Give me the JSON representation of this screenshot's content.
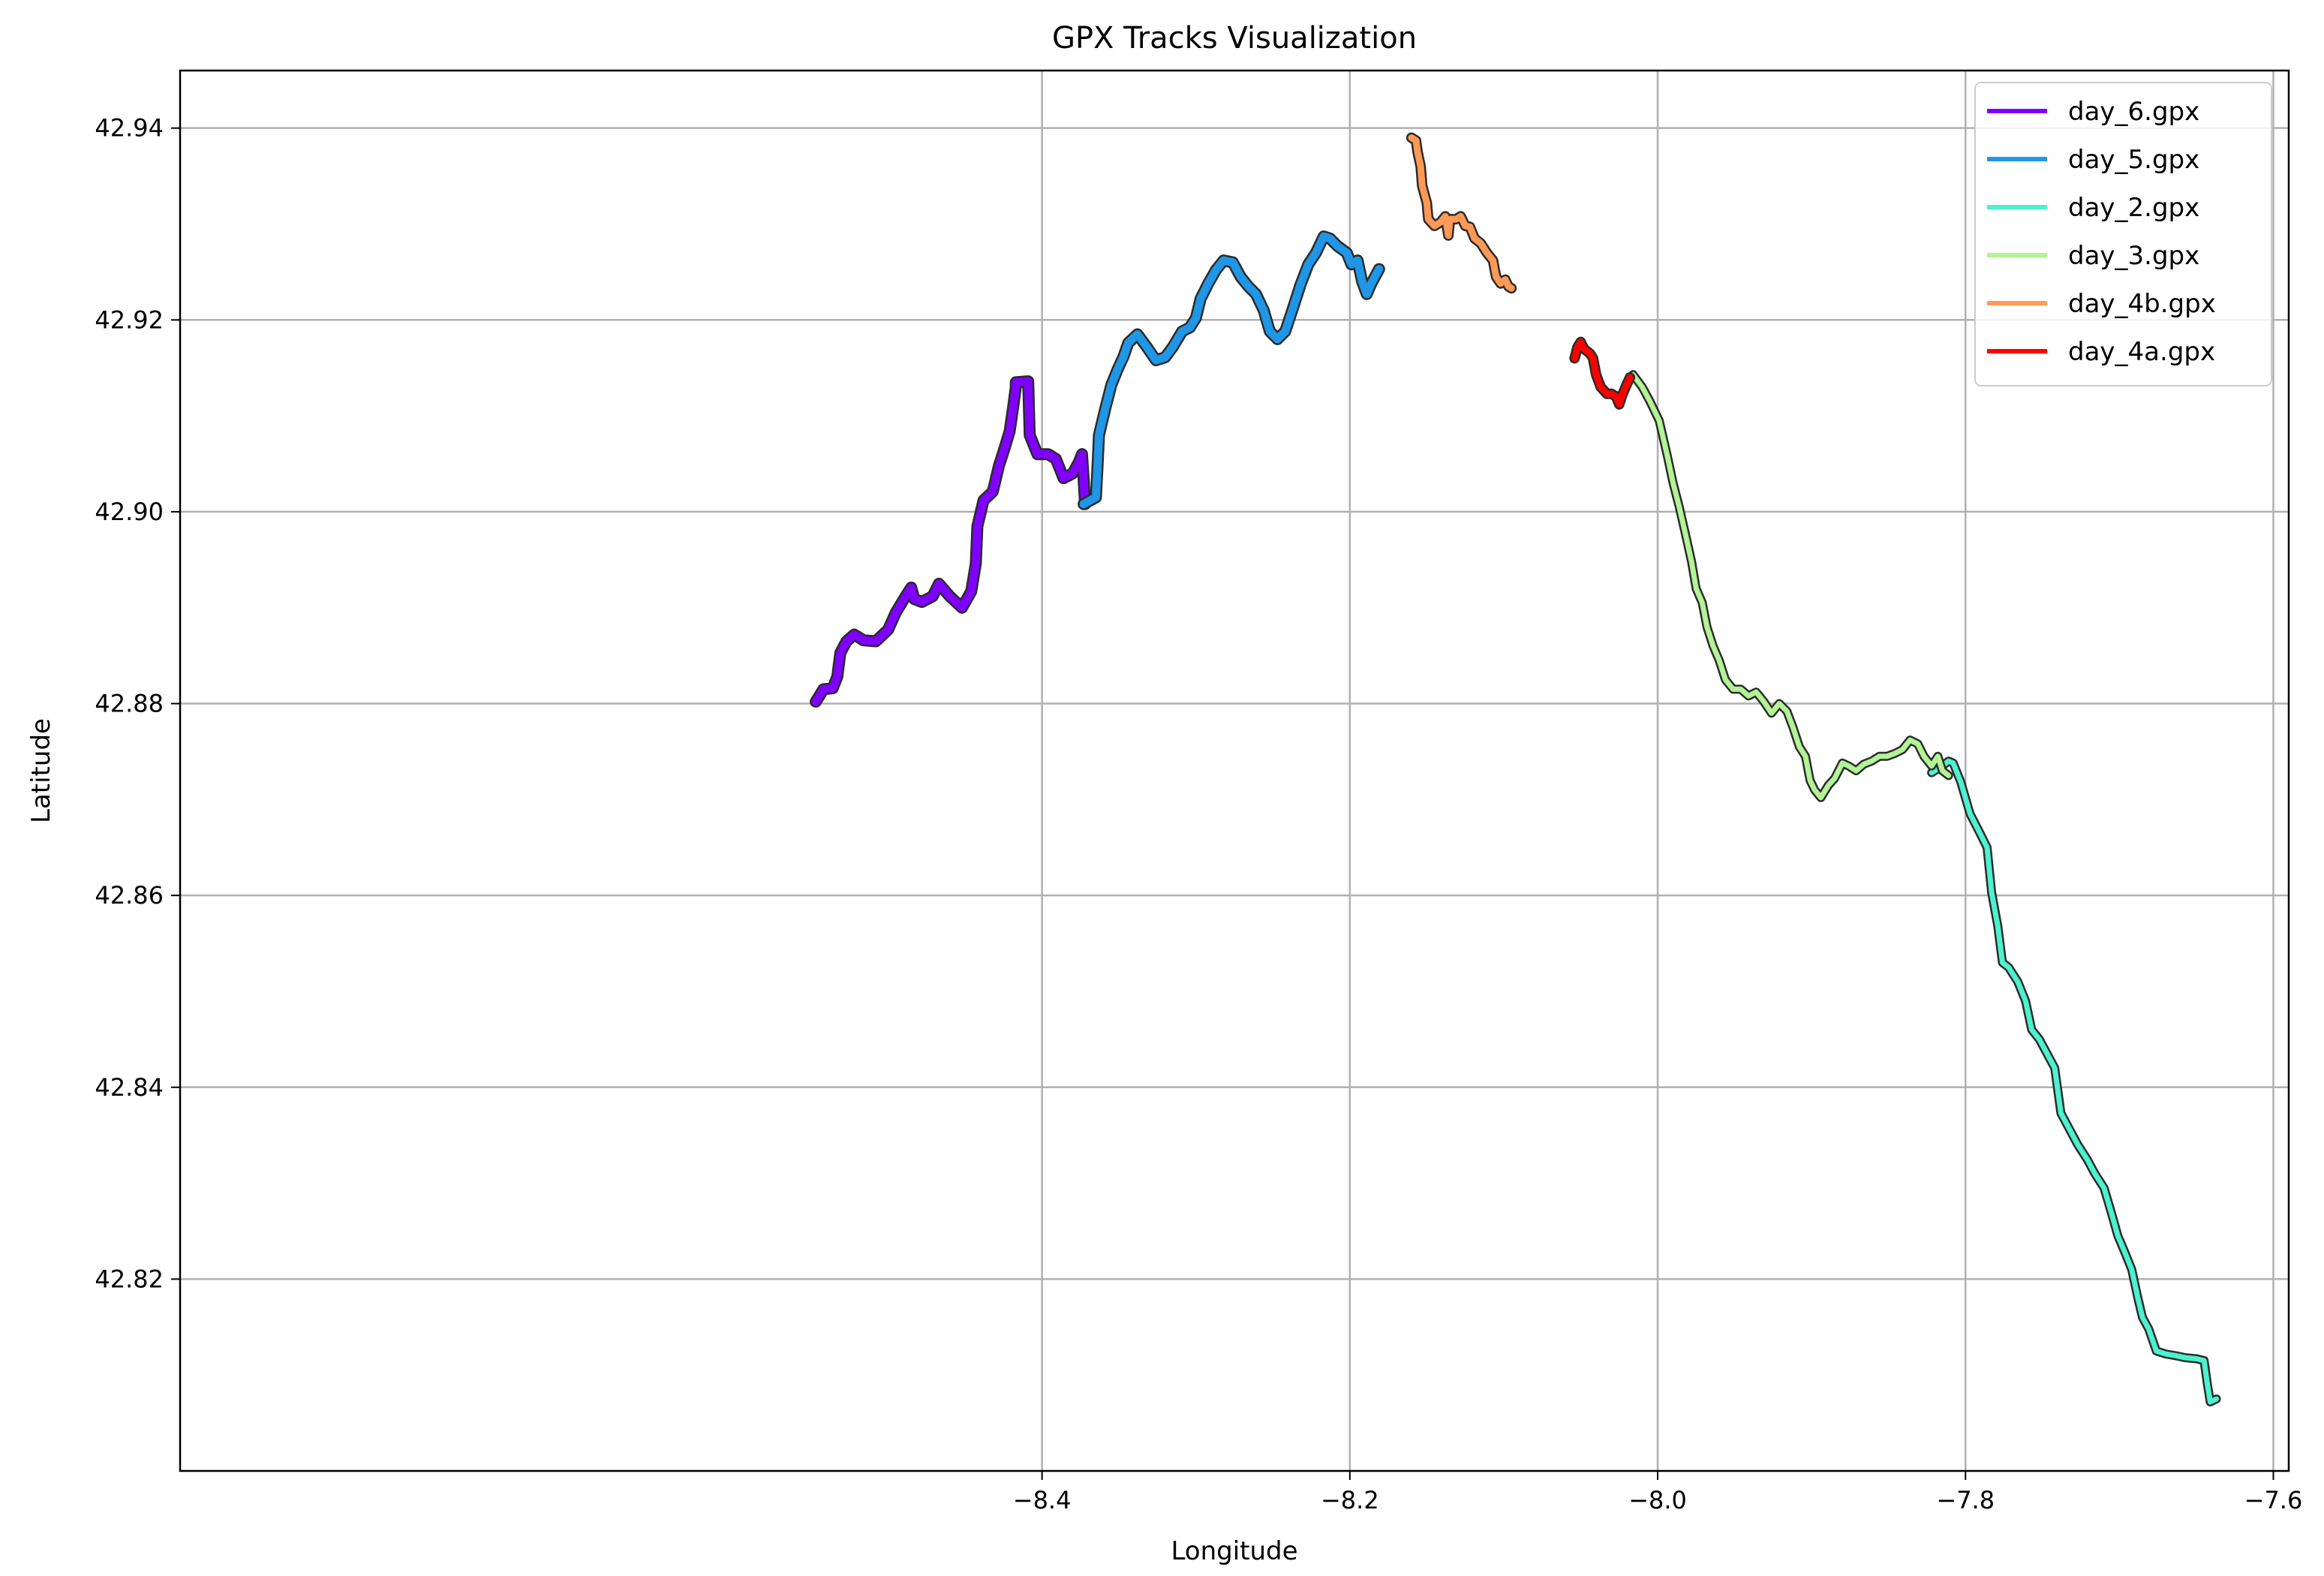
{
  "chart_data": {
    "type": "line",
    "title": "GPX Tracks Visualization",
    "xlabel": "Longitude",
    "ylabel": "Latitude",
    "xlim": [
      -8.96,
      -7.59
    ],
    "ylim": [
      42.8,
      42.946
    ],
    "x_ticks": [
      -8.4,
      -8.2,
      -8.0,
      -7.8,
      -7.6
    ],
    "x_tick_labels": [
      "−8.4",
      "−8.2",
      "−8.0",
      "−7.8",
      "−7.6"
    ],
    "y_ticks": [
      42.82,
      42.84,
      42.86,
      42.88,
      42.9,
      42.92,
      42.94
    ],
    "y_tick_labels": [
      "42.82",
      "42.84",
      "42.86",
      "42.88",
      "42.90",
      "42.92",
      "42.94"
    ],
    "grid": true,
    "legend_position": "top-right",
    "series": [
      {
        "name": "day_6.gpx",
        "color": "#8000ff",
        "points": [
          [
            -8.547,
            42.8802
          ],
          [
            -8.542,
            42.8815
          ],
          [
            -8.536,
            42.8816
          ],
          [
            -8.533,
            42.8828
          ],
          [
            -8.531,
            42.8853
          ],
          [
            -8.527,
            42.8865
          ],
          [
            -8.522,
            42.8872
          ],
          [
            -8.516,
            42.8866
          ],
          [
            -8.508,
            42.8865
          ],
          [
            -8.5,
            42.8877
          ],
          [
            -8.495,
            42.8895
          ],
          [
            -8.489,
            42.8911
          ],
          [
            -8.485,
            42.8921
          ],
          [
            -8.483,
            42.8909
          ],
          [
            -8.478,
            42.8906
          ],
          [
            -8.471,
            42.8912
          ],
          [
            -8.467,
            42.8925
          ],
          [
            -8.46,
            42.8912
          ],
          [
            -8.452,
            42.89
          ],
          [
            -8.446,
            42.8917
          ],
          [
            -8.443,
            42.8946
          ],
          [
            -8.442,
            42.8985
          ],
          [
            -8.438,
            42.9012
          ],
          [
            -8.432,
            42.9021
          ],
          [
            -8.428,
            42.9048
          ],
          [
            -8.424,
            42.9068
          ],
          [
            -8.421,
            42.9084
          ],
          [
            -8.419,
            42.9106
          ],
          [
            -8.417,
            42.913
          ],
          [
            -8.417,
            42.9135
          ],
          [
            -8.409,
            42.9136
          ],
          [
            -8.408,
            42.908
          ],
          [
            -8.403,
            42.906
          ],
          [
            -8.396,
            42.906
          ],
          [
            -8.391,
            42.9055
          ],
          [
            -8.386,
            42.9035
          ],
          [
            -8.38,
            42.904
          ],
          [
            -8.376,
            42.9052
          ],
          [
            -8.374,
            42.906
          ],
          [
            -8.373,
            42.9035
          ],
          [
            -8.372,
            42.9008
          ]
        ]
      },
      {
        "name": "day_5.gpx",
        "color": "#1f96e6",
        "points": [
          [
            -8.373,
            42.9008
          ],
          [
            -8.365,
            42.9015
          ],
          [
            -8.364,
            42.9046
          ],
          [
            -8.363,
            42.908
          ],
          [
            -8.359,
            42.9107
          ],
          [
            -8.355,
            42.9132
          ],
          [
            -8.351,
            42.9148
          ],
          [
            -8.347,
            42.9162
          ],
          [
            -8.344,
            42.9176
          ],
          [
            -8.338,
            42.9185
          ],
          [
            -8.332,
            42.9172
          ],
          [
            -8.326,
            42.9158
          ],
          [
            -8.32,
            42.9161
          ],
          [
            -8.315,
            42.9172
          ],
          [
            -8.309,
            42.9188
          ],
          [
            -8.304,
            42.9192
          ],
          [
            -8.3,
            42.9202
          ],
          [
            -8.297,
            42.9222
          ],
          [
            -8.292,
            42.9238
          ],
          [
            -8.287,
            42.9252
          ],
          [
            -8.282,
            42.9262
          ],
          [
            -8.276,
            42.926
          ],
          [
            -8.271,
            42.9245
          ],
          [
            -8.266,
            42.9235
          ],
          [
            -8.261,
            42.9227
          ],
          [
            -8.256,
            42.921
          ],
          [
            -8.252,
            42.9188
          ],
          [
            -8.247,
            42.918
          ],
          [
            -8.242,
            42.9188
          ],
          [
            -8.237,
            42.9212
          ],
          [
            -8.232,
            42.9237
          ],
          [
            -8.227,
            42.9258
          ],
          [
            -8.222,
            42.927
          ],
          [
            -8.217,
            42.9287
          ],
          [
            -8.213,
            42.9285
          ],
          [
            -8.208,
            42.9277
          ],
          [
            -8.202,
            42.927
          ],
          [
            -8.199,
            42.9258
          ],
          [
            -8.195,
            42.9262
          ],
          [
            -8.192,
            42.924
          ],
          [
            -8.189,
            42.9227
          ],
          [
            -8.186,
            42.9238
          ],
          [
            -8.181,
            42.9253
          ]
        ]
      },
      {
        "name": "day_2.gpx",
        "color": "#4cf2ce",
        "points": [
          [
            -7.822,
            42.8728
          ],
          [
            -7.816,
            42.8734
          ],
          [
            -7.811,
            42.874
          ],
          [
            -7.808,
            42.8738
          ],
          [
            -7.803,
            42.8718
          ],
          [
            -7.797,
            42.8685
          ],
          [
            -7.79,
            42.8663
          ],
          [
            -7.786,
            42.865
          ],
          [
            -7.783,
            42.8603
          ],
          [
            -7.779,
            42.8568
          ],
          [
            -7.776,
            42.853
          ],
          [
            -7.772,
            42.8525
          ],
          [
            -7.766,
            42.851
          ],
          [
            -7.761,
            42.849
          ],
          [
            -7.757,
            42.846
          ],
          [
            -7.752,
            42.845
          ],
          [
            -7.748,
            42.8438
          ],
          [
            -7.742,
            42.842
          ],
          [
            -7.738,
            42.8373
          ],
          [
            -7.732,
            42.8355
          ],
          [
            -7.727,
            42.834
          ],
          [
            -7.721,
            42.8325
          ],
          [
            -7.716,
            42.831
          ],
          [
            -7.71,
            42.8295
          ],
          [
            -7.705,
            42.8268
          ],
          [
            -7.701,
            42.8245
          ],
          [
            -7.697,
            42.823
          ],
          [
            -7.692,
            42.821
          ],
          [
            -7.688,
            42.818
          ],
          [
            -7.685,
            42.816
          ],
          [
            -7.681,
            42.8148
          ],
          [
            -7.676,
            42.8125
          ],
          [
            -7.67,
            42.8122
          ],
          [
            -7.663,
            42.812
          ],
          [
            -7.657,
            42.8118
          ],
          [
            -7.65,
            42.8117
          ],
          [
            -7.645,
            42.8115
          ],
          [
            -7.643,
            42.8092
          ],
          [
            -7.641,
            42.8072
          ],
          [
            -7.637,
            42.8075
          ]
        ]
      },
      {
        "name": "day_3.gpx",
        "color": "#b2f396",
        "points": [
          [
            -8.016,
            42.9143
          ],
          [
            -8.01,
            42.913
          ],
          [
            -8.005,
            42.9115
          ],
          [
            -7.999,
            42.9095
          ],
          [
            -7.994,
            42.906
          ],
          [
            -7.99,
            42.903
          ],
          [
            -7.986,
            42.9005
          ],
          [
            -7.982,
            42.8977
          ],
          [
            -7.978,
            42.8948
          ],
          [
            -7.975,
            42.892
          ],
          [
            -7.971,
            42.8905
          ],
          [
            -7.968,
            42.888
          ],
          [
            -7.964,
            42.886
          ],
          [
            -7.96,
            42.8845
          ],
          [
            -7.956,
            42.8825
          ],
          [
            -7.951,
            42.8815
          ],
          [
            -7.946,
            42.8815
          ],
          [
            -7.941,
            42.8808
          ],
          [
            -7.936,
            42.8812
          ],
          [
            -7.931,
            42.8802
          ],
          [
            -7.926,
            42.879
          ],
          [
            -7.921,
            42.88
          ],
          [
            -7.916,
            42.8792
          ],
          [
            -7.912,
            42.8775
          ],
          [
            -7.908,
            42.8755
          ],
          [
            -7.904,
            42.8745
          ],
          [
            -7.901,
            42.872
          ],
          [
            -7.898,
            42.871
          ],
          [
            -7.894,
            42.8702
          ],
          [
            -7.889,
            42.8715
          ],
          [
            -7.885,
            42.8722
          ],
          [
            -7.88,
            42.8738
          ],
          [
            -7.876,
            42.8735
          ],
          [
            -7.871,
            42.873
          ],
          [
            -7.866,
            42.8737
          ],
          [
            -7.861,
            42.874
          ],
          [
            -7.856,
            42.8745
          ],
          [
            -7.851,
            42.8745
          ],
          [
            -7.846,
            42.8748
          ],
          [
            -7.841,
            42.8752
          ],
          [
            -7.836,
            42.8762
          ],
          [
            -7.831,
            42.8758
          ],
          [
            -7.827,
            42.8745
          ],
          [
            -7.822,
            42.8735
          ],
          [
            -7.818,
            42.8745
          ],
          [
            -7.815,
            42.873
          ],
          [
            -7.811,
            42.8725
          ]
        ]
      },
      {
        "name": "day_4b.gpx",
        "color": "#ff9955",
        "points": [
          [
            -8.16,
            42.939
          ],
          [
            -8.157,
            42.9387
          ],
          [
            -8.156,
            42.9375
          ],
          [
            -8.154,
            42.936
          ],
          [
            -8.153,
            42.934
          ],
          [
            -8.15,
            42.9322
          ],
          [
            -8.149,
            42.9305
          ],
          [
            -8.145,
            42.9298
          ],
          [
            -8.141,
            42.9302
          ],
          [
            -8.138,
            42.9308
          ],
          [
            -8.136,
            42.9288
          ],
          [
            -8.135,
            42.9305
          ],
          [
            -8.131,
            42.9305
          ],
          [
            -8.128,
            42.9308
          ],
          [
            -8.125,
            42.9298
          ],
          [
            -8.122,
            42.9297
          ],
          [
            -8.119,
            42.9285
          ],
          [
            -8.115,
            42.928
          ],
          [
            -8.111,
            42.927
          ],
          [
            -8.107,
            42.9262
          ],
          [
            -8.105,
            42.9245
          ],
          [
            -8.102,
            42.9238
          ],
          [
            -8.099,
            42.9242
          ],
          [
            -8.097,
            42.9235
          ],
          [
            -8.095,
            42.9233
          ]
        ]
      },
      {
        "name": "day_4a.gpx",
        "color": "#ff0000",
        "points": [
          [
            -8.054,
            42.916
          ],
          [
            -8.052,
            42.9172
          ],
          [
            -8.05,
            42.9177
          ],
          [
            -8.048,
            42.917
          ],
          [
            -8.044,
            42.9165
          ],
          [
            -8.042,
            42.916
          ],
          [
            -8.04,
            42.9143
          ],
          [
            -8.037,
            42.913
          ],
          [
            -8.033,
            42.9123
          ],
          [
            -8.03,
            42.9123
          ],
          [
            -8.027,
            42.912
          ],
          [
            -8.025,
            42.9112
          ],
          [
            -8.023,
            42.9122
          ],
          [
            -8.02,
            42.9133
          ],
          [
            -8.018,
            42.914
          ]
        ]
      }
    ]
  }
}
